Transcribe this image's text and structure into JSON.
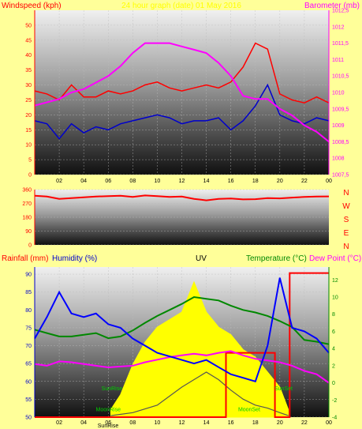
{
  "chart_data": [
    {
      "type": "line",
      "title": "24 hour graph (date) 01 May 2016",
      "ylabel_left": "Windspeed (kph)",
      "ylabel_right": "Barometer (mb)",
      "ylim_left": [
        0,
        55
      ],
      "ylim_right": [
        1007.5,
        1012.5
      ],
      "left_ticks": [
        "0",
        "5",
        "10",
        "15",
        "20",
        "25",
        "30",
        "35",
        "40",
        "45",
        "50"
      ],
      "right_ticks": [
        "1007,5",
        "1008",
        "1008,5",
        "1009",
        "1009,5",
        "1010",
        "1010,5",
        "1011",
        "1011,5",
        "1012",
        "1012,5"
      ],
      "x_ticks": [
        "02",
        "04",
        "06",
        "08",
        "10",
        "12",
        "14",
        "16",
        "18",
        "20",
        "22",
        "00"
      ],
      "xlim": [
        0,
        24
      ],
      "colors": {
        "gust": "#ff0000",
        "wind": "#0000cc",
        "barometer": "#ff00ff",
        "text_left": "#ff0000",
        "text_right": "#ff00ff",
        "title": "#ffff00"
      },
      "series": [
        {
          "key": "gust",
          "x": [
            0,
            1,
            2,
            3,
            4,
            5,
            6,
            7,
            8,
            9,
            10,
            11,
            12,
            13,
            14,
            15,
            16,
            17,
            18,
            19,
            20,
            21,
            22,
            23,
            24
          ],
          "y": [
            28,
            27,
            25,
            30,
            26,
            26,
            28,
            27,
            28,
            30,
            31,
            29,
            28,
            29,
            30,
            29,
            31,
            36,
            44,
            42,
            27,
            25,
            24,
            26,
            24
          ]
        },
        {
          "key": "wind",
          "x": [
            0,
            1,
            2,
            3,
            4,
            5,
            6,
            7,
            8,
            9,
            10,
            11,
            12,
            13,
            14,
            15,
            16,
            17,
            18,
            19,
            20,
            21,
            22,
            23,
            24
          ],
          "y": [
            18,
            17,
            12,
            17,
            14,
            16,
            15,
            17,
            18,
            19,
            20,
            19,
            17,
            18,
            18,
            19,
            15,
            18,
            23,
            30,
            20,
            18,
            17,
            19,
            18
          ]
        },
        {
          "key": "barometer",
          "x": [
            0,
            1,
            2,
            3,
            4,
            5,
            6,
            7,
            8,
            9,
            10,
            11,
            12,
            13,
            14,
            15,
            16,
            17,
            18,
            19,
            20,
            21,
            22,
            23,
            24
          ],
          "y": [
            1009.6,
            1009.7,
            1009.8,
            1010.0,
            1010.1,
            1010.3,
            1010.5,
            1010.8,
            1011.2,
            1011.5,
            1011.5,
            1011.5,
            1011.4,
            1011.3,
            1011.2,
            1010.9,
            1010.5,
            1009.9,
            1009.8,
            1009.8,
            1009.5,
            1009.3,
            1009.0,
            1008.8,
            1008.5
          ]
        }
      ]
    },
    {
      "type": "line",
      "ylim": [
        0,
        360
      ],
      "left_ticks": [
        "0",
        "90",
        "180",
        "270",
        "360"
      ],
      "compass_labels": [
        "N",
        "W",
        "S",
        "E",
        "N"
      ],
      "colors": {
        "direction": "#ff0000",
        "text": "#ff0000"
      },
      "series": [
        {
          "key": "direction",
          "x": [
            0,
            1,
            2,
            3,
            4,
            5,
            6,
            7,
            8,
            9,
            10,
            11,
            12,
            13,
            14,
            15,
            16,
            17,
            18,
            19,
            20,
            21,
            22,
            23,
            24
          ],
          "y": [
            320,
            315,
            300,
            305,
            310,
            315,
            318,
            320,
            312,
            322,
            318,
            312,
            315,
            300,
            290,
            300,
            302,
            296,
            298,
            305,
            303,
            308,
            312,
            315,
            316
          ]
        }
      ]
    },
    {
      "type": "line",
      "header": {
        "rainfall": "Rainfall (mm)",
        "humidity": "Humidity (%)",
        "uv": "UV",
        "temperature": "Temperature (°C)",
        "dewpoint": "Dew Point (°C)"
      },
      "ylim_left": [
        50,
        92
      ],
      "ylim_right": [
        -4,
        13.5
      ],
      "left_ticks": [
        "50",
        "55",
        "60",
        "65",
        "70",
        "75",
        "80",
        "85",
        "90"
      ],
      "right_ticks": [
        "-4",
        "-2",
        "0",
        "2",
        "4",
        "6",
        "8",
        "10",
        "12"
      ],
      "x_ticks": [
        "02",
        "04",
        "06",
        "08",
        "10",
        "12",
        "14",
        "16",
        "18",
        "20",
        "22",
        "00"
      ],
      "xlim": [
        0,
        24
      ],
      "annotations": [
        {
          "text": "SunRise",
          "x": 6.3,
          "y_frac": 0.82,
          "color": "#00cc00"
        },
        {
          "text": "MoonRise",
          "x": 6.0,
          "y_frac": 0.96,
          "color": "#00cc00"
        },
        {
          "text": "SunSet",
          "x": 20.3,
          "y_frac": 0.82,
          "color": "#00cc00"
        },
        {
          "text": "MoonSet",
          "x": 17.5,
          "y_frac": 0.96,
          "color": "#00cc00"
        }
      ],
      "bottom_label": "SunRise",
      "colors": {
        "humidity": "#0000ff",
        "temperature": "#008800",
        "dewpoint": "#ff00ff",
        "rain": "#ff0000",
        "uv": "#ffff00",
        "solar": "#555555"
      },
      "series": [
        {
          "key": "humidity",
          "axis": "left",
          "x": [
            0,
            1,
            2,
            3,
            4,
            5,
            6,
            7,
            8,
            9,
            10,
            11,
            12,
            13,
            14,
            15,
            16,
            17,
            18,
            19,
            20,
            21,
            22,
            23,
            24
          ],
          "y": [
            72,
            78,
            85,
            79,
            78,
            79,
            76,
            75,
            72,
            70,
            68,
            67,
            66,
            65,
            66,
            64,
            62,
            61,
            60,
            70,
            89,
            75,
            74,
            72,
            68
          ]
        },
        {
          "key": "temperature",
          "axis": "right",
          "x": [
            0,
            1,
            2,
            3,
            4,
            5,
            6,
            7,
            8,
            9,
            10,
            11,
            12,
            13,
            14,
            15,
            16,
            17,
            18,
            19,
            20,
            21,
            22,
            23,
            24
          ],
          "y": [
            6.2,
            5.8,
            5.4,
            5.4,
            5.6,
            5.8,
            5.2,
            5.4,
            6.1,
            7.0,
            7.8,
            8.5,
            9.2,
            10.0,
            9.8,
            9.6,
            9.0,
            8.5,
            8.2,
            7.8,
            7.2,
            6.5,
            5.0,
            4.8,
            4.5
          ]
        },
        {
          "key": "dewpoint",
          "axis": "right",
          "x": [
            0,
            1,
            2,
            3,
            4,
            5,
            6,
            7,
            8,
            9,
            10,
            11,
            12,
            13,
            14,
            15,
            16,
            17,
            18,
            19,
            20,
            21,
            22,
            23,
            24
          ],
          "y": [
            2.2,
            2.0,
            2.5,
            2.4,
            2.2,
            2.0,
            1.8,
            1.9,
            2.0,
            2.4,
            2.7,
            3.0,
            3.2,
            3.4,
            3.2,
            3.5,
            3.7,
            3.2,
            2.8,
            2.6,
            2.4,
            2.0,
            1.4,
            1.0,
            0.0
          ]
        },
        {
          "key": "rain",
          "axis": "right",
          "x": [
            0,
            15.6,
            15.6,
            19.6,
            19.6,
            20.8,
            20.8,
            24
          ],
          "y": [
            -4,
            -4,
            3.5,
            3.5,
            -4,
            -4,
            12.8,
            12.8
          ]
        },
        {
          "key": "uv",
          "axis": "frac",
          "x": [
            6.2,
            7,
            8,
            9,
            10,
            11,
            12,
            13,
            14,
            15,
            16,
            17,
            18,
            19,
            20,
            20.7
          ],
          "y": [
            0.05,
            0.15,
            0.35,
            0.5,
            0.6,
            0.65,
            0.7,
            0.9,
            0.7,
            0.6,
            0.55,
            0.45,
            0.4,
            0.3,
            0.2,
            0.05
          ]
        },
        {
          "key": "solar",
          "axis": "frac",
          "x": [
            6.2,
            8,
            10,
            12,
            13,
            14,
            15,
            16,
            17,
            18,
            19,
            20,
            20.7
          ],
          "y": [
            0.01,
            0.03,
            0.08,
            0.2,
            0.25,
            0.3,
            0.25,
            0.18,
            0.12,
            0.08,
            0.06,
            0.03,
            0.01
          ]
        }
      ]
    }
  ]
}
